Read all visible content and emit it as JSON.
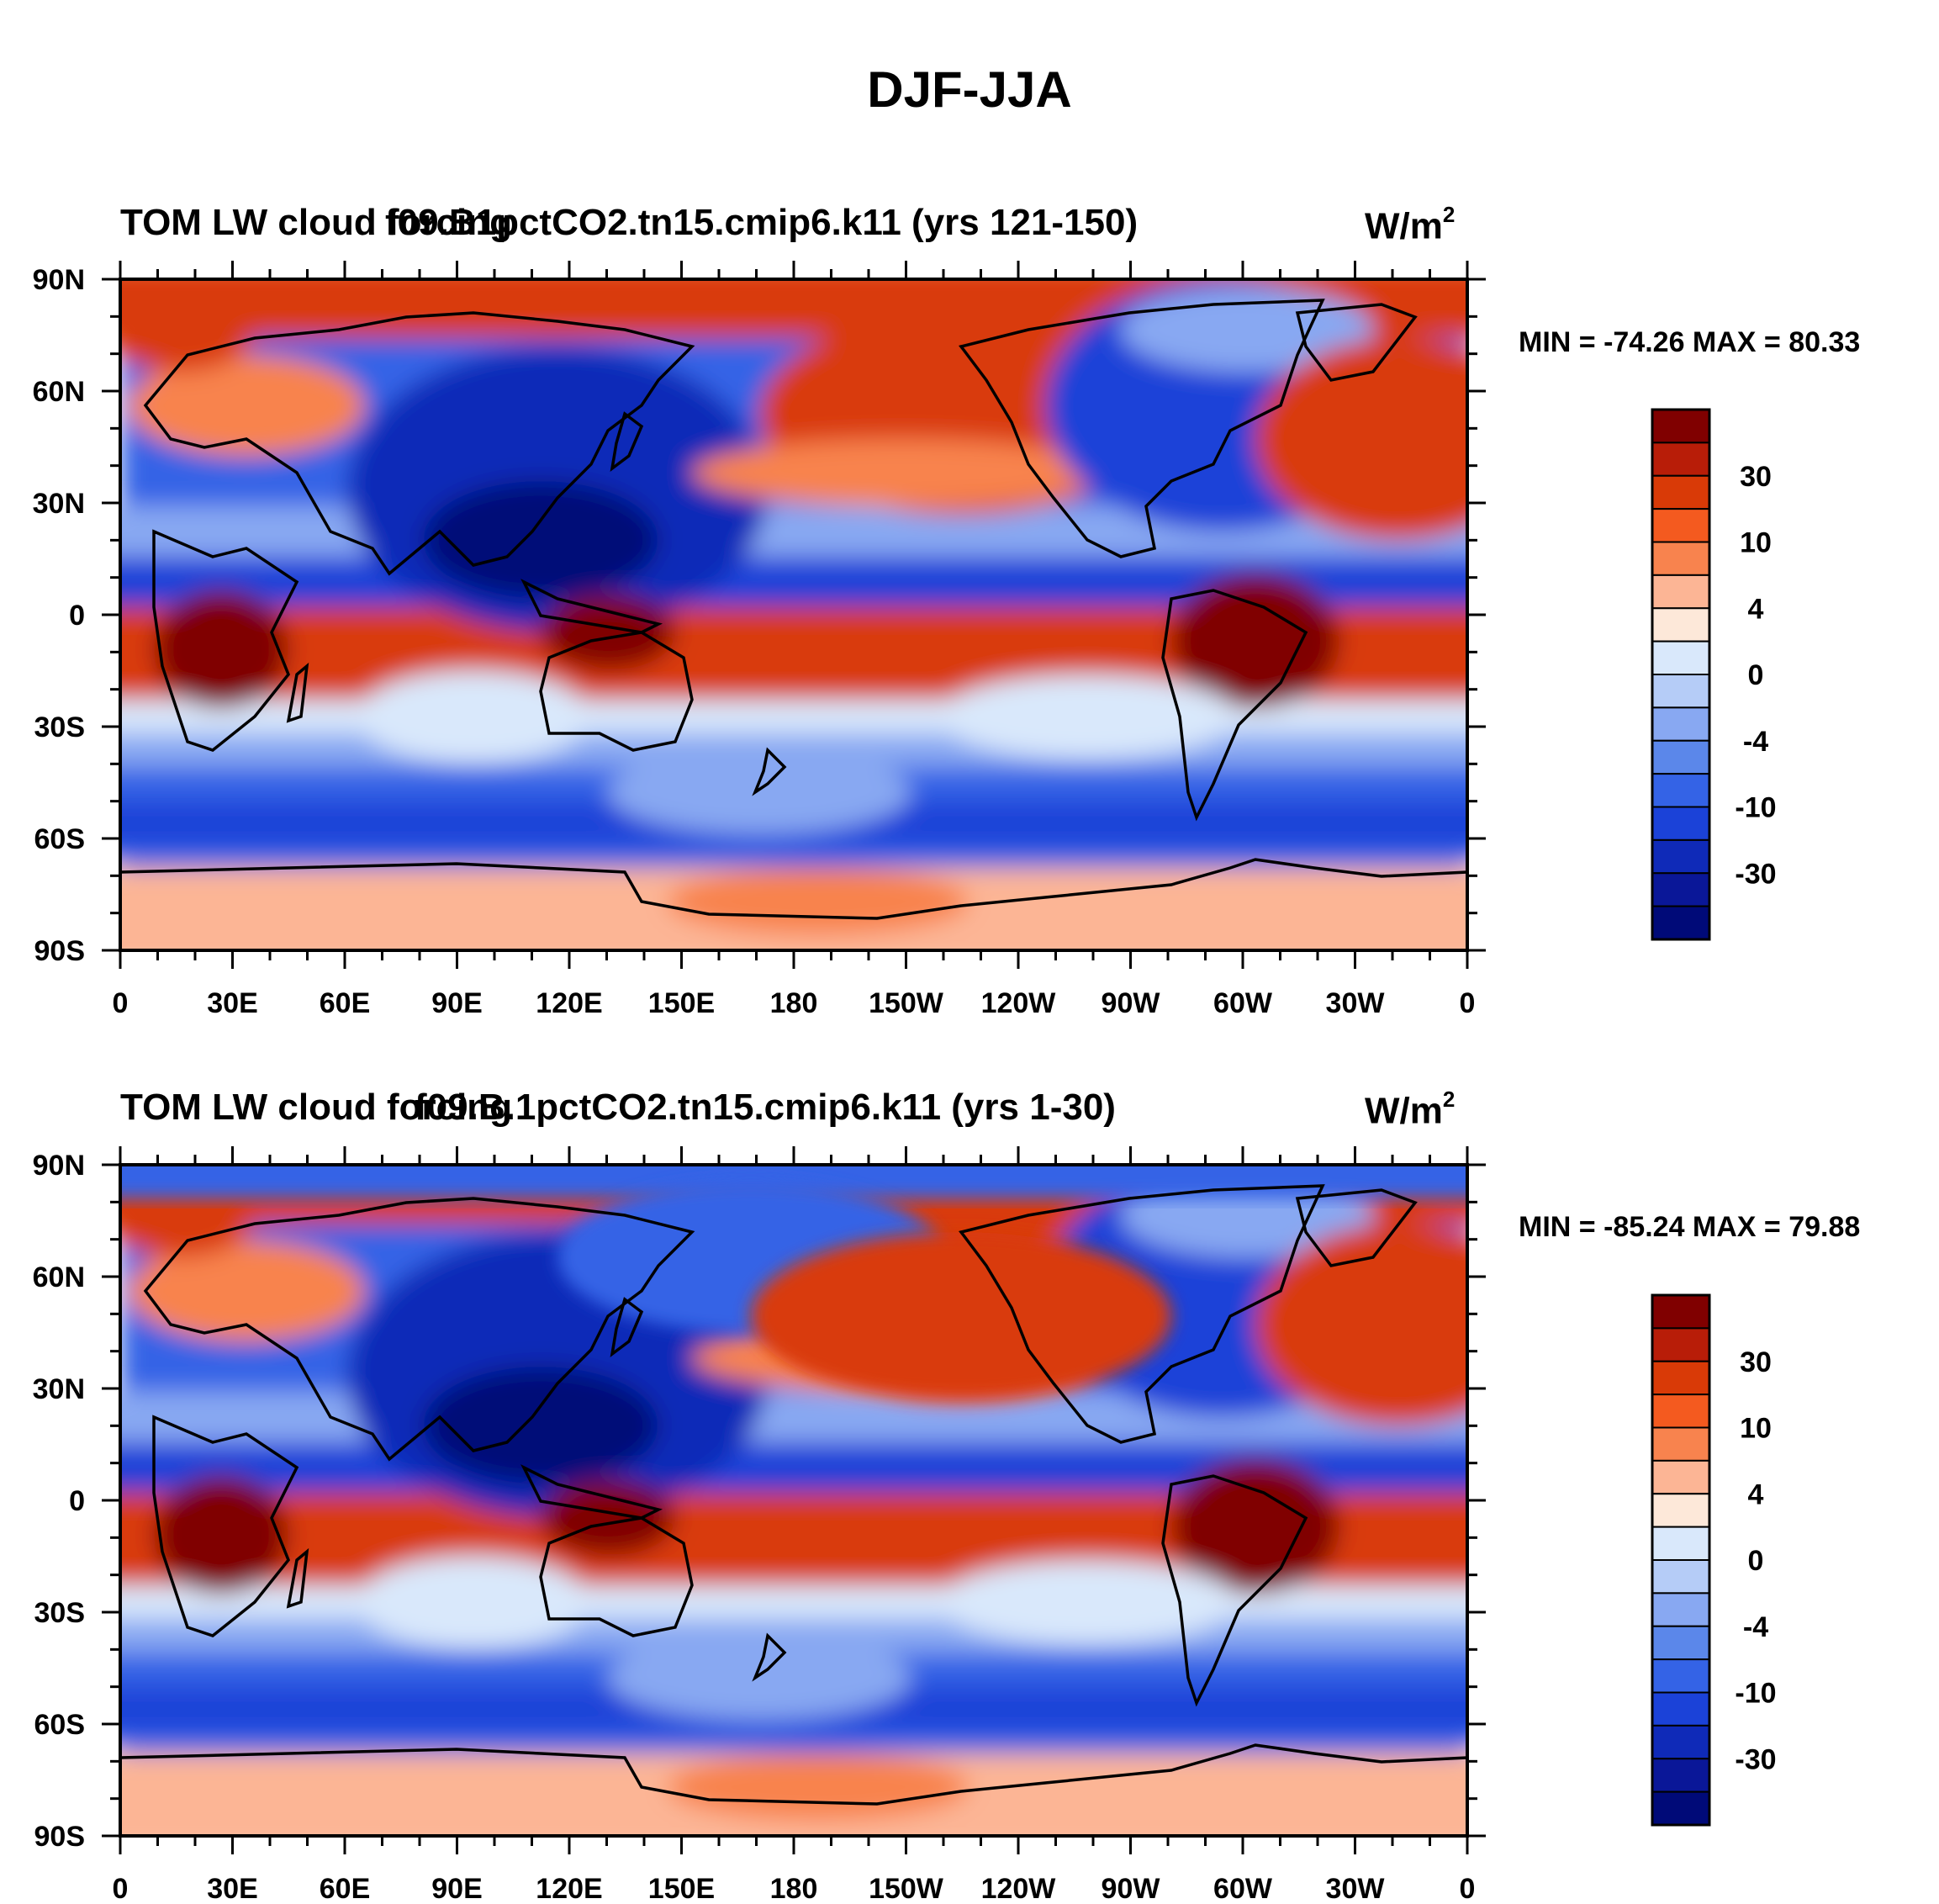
{
  "figure": {
    "title": "DJF-JJA"
  },
  "panels": [
    {
      "left_title": "TOM LW cloud forcing",
      "center_title": "f09.B1pctCO2.tn15.cmip6.k11 (yrs 121-150)",
      "units_main": "W/m",
      "units_sup": "2",
      "minmax": "MIN = -74.26 MAX =  80.33"
    },
    {
      "left_title": "TOM LW cloud forcing",
      "center_title": "f09.B.1pctCO2.tn15.cmip6.k11 (yrs 1-30)",
      "units_main": "W/m",
      "units_sup": "2",
      "minmax": "MIN = -85.24 MAX =  79.88"
    }
  ],
  "axes": {
    "lat_labels": [
      "90N",
      "60N",
      "30N",
      "0",
      "30S",
      "60S",
      "90S"
    ],
    "lon_labels": [
      "0",
      "30E",
      "60E",
      "90E",
      "120E",
      "150E",
      "180",
      "150W",
      "120W",
      "90W",
      "60W",
      "30W",
      "0"
    ]
  },
  "colorbar": {
    "labels": [
      "30",
      "10",
      "4",
      "0",
      "-4",
      "-10",
      "-30"
    ],
    "colors": [
      "#800000",
      "#b81d08",
      "#d93a07",
      "#f45a1f",
      "#f8834e",
      "#fcb595",
      "#fde8d9",
      "#d9e8fb",
      "#b5ccf7",
      "#88a8f2",
      "#5b87ea",
      "#3463e6",
      "#1b42d8",
      "#0f2ab8",
      "#0a1798",
      "#000a78"
    ]
  },
  "chart_data": {
    "type": "heatmap",
    "title": "DJF-JJA",
    "variable": "TOM LW cloud forcing",
    "units": "W/m2",
    "panels": [
      {
        "case": "f09.B1pctCO2.tn15.cmip6.k11 (yrs 121-150)",
        "min": -74.26,
        "max": 80.33
      },
      {
        "case": "f09.B.1pctCO2.tn15.cmip6.k11 (yrs 1-30)",
        "min": -85.24,
        "max": 79.88
      }
    ],
    "x_range": [
      0,
      360
    ],
    "y_range": [
      -90,
      90
    ],
    "colorbar_levels": [
      30,
      10,
      4,
      0,
      -4,
      -10,
      -30
    ]
  }
}
